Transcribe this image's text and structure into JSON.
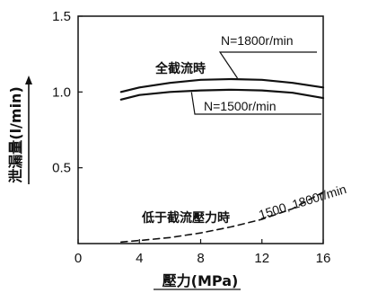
{
  "chart_data": {
    "type": "line",
    "title": "",
    "xlabel": "壓力(MPa)",
    "ylabel": "泄漏量(l/min)",
    "xlim": [
      0,
      16
    ],
    "ylim": [
      0,
      1.5
    ],
    "x_ticks": [
      "0",
      "4",
      "8",
      "12",
      "16"
    ],
    "y_ticks": [
      "0.5",
      "1.0",
      "1.5"
    ],
    "grid": false,
    "series": [
      {
        "name": "N=1800r/min",
        "group": "全截流時",
        "style": "solid",
        "x": [
          2.8,
          4,
          6,
          8,
          10,
          12,
          14,
          16
        ],
        "y": [
          1.0,
          1.03,
          1.06,
          1.08,
          1.085,
          1.08,
          1.06,
          1.03
        ]
      },
      {
        "name": "N=1500r/min",
        "group": "全截流時",
        "style": "solid",
        "x": [
          2.8,
          4,
          6,
          8,
          10,
          12,
          14,
          16
        ],
        "y": [
          0.95,
          0.98,
          1.0,
          1.01,
          1.015,
          1.01,
          0.995,
          0.96
        ]
      },
      {
        "name": "1500, 1800r/min",
        "group": "低于截流壓力時",
        "style": "dashed",
        "x": [
          2.8,
          4,
          6,
          8,
          10,
          12,
          14,
          16
        ],
        "y": [
          0.01,
          0.02,
          0.04,
          0.07,
          0.11,
          0.16,
          0.23,
          0.34
        ]
      }
    ],
    "annotations": [
      {
        "text": "N=1800r/min"
      },
      {
        "text": "全截流時"
      },
      {
        "text": "N=1500r/min"
      },
      {
        "text": "低于截流壓力時"
      },
      {
        "text": "1500, 1800r/min"
      }
    ]
  }
}
